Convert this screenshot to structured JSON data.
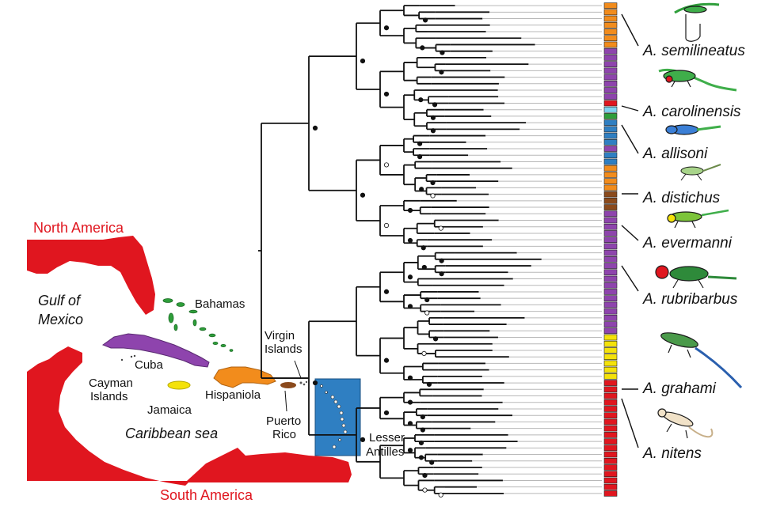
{
  "map": {
    "continents": {
      "north": "North America",
      "south": "South America"
    },
    "water": {
      "gulf": [
        "Gulf of",
        "Mexico"
      ],
      "sea": "Caribbean sea"
    },
    "islands": {
      "bahamas": "Bahamas",
      "cuba": "Cuba",
      "cayman": [
        "Cayman",
        "Islands"
      ],
      "jamaica": "Jamaica",
      "hispaniola": "Hispaniola",
      "virgin": [
        "Virgin",
        "Islands"
      ],
      "puerto_rico": [
        "Puerto",
        "Rico"
      ],
      "lesser_antilles": [
        "Lesser",
        "Antilles"
      ]
    }
  },
  "species_labels": [
    "A. semilineatus",
    "A. carolinensis",
    "A. allisoni",
    "A. distichus",
    "A. evermanni",
    "A. rubribarbus",
    "A. grahami",
    "A. nitens"
  ],
  "colors": {
    "continent": "#e0161f",
    "cuba": "#8e44ad",
    "bahamas": "#2e9e3a",
    "jamaica": "#f4e20a",
    "hispaniola": "#f28c1c",
    "puerto_rico": "#8b4a1c",
    "lesser_antilles": "#2f7fc2",
    "mainland_tip": "#e0161f",
    "light_blue": "#7fd3f0"
  },
  "tip_colors": [
    "orange",
    "orange",
    "orange",
    "orange",
    "orange",
    "orange",
    "orange",
    "purple",
    "purple",
    "purple",
    "purple",
    "purple",
    "purple",
    "purple",
    "purple",
    "red",
    "lightblue",
    "green",
    "blue",
    "blue",
    "blue",
    "blue",
    "purple",
    "blue",
    "blue",
    "orange",
    "orange",
    "orange",
    "orange",
    "brown",
    "brown",
    "brown",
    "purple",
    "purple",
    "purple",
    "purple",
    "purple",
    "purple",
    "purple",
    "purple",
    "purple",
    "purple",
    "purple",
    "purple",
    "purple",
    "purple",
    "purple",
    "purple",
    "purple",
    "purple",
    "purple",
    "yellow",
    "yellow",
    "yellow",
    "yellow",
    "yellow",
    "yellow",
    "yellow",
    "red",
    "red",
    "red",
    "red",
    "red",
    "red",
    "red",
    "red",
    "red",
    "red",
    "red",
    "red",
    "red",
    "red",
    "red",
    "red",
    "red",
    "red"
  ]
}
